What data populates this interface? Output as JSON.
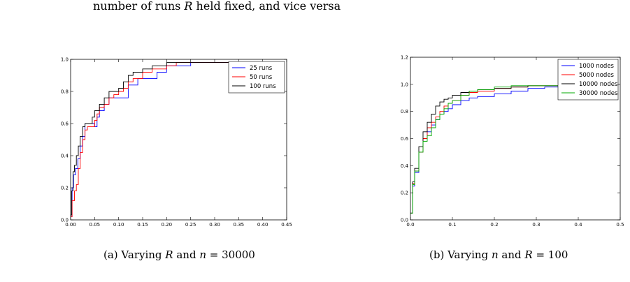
{
  "intro_text": {
    "before": "number of runs ",
    "var": "R",
    "after": " held fixed, and vice versa"
  },
  "captions": [
    {
      "label": "(a) Varying ",
      "v1": "R",
      "mid": " and ",
      "v2": "n",
      "tail": " = 30000"
    },
    {
      "label": "(b) Varying ",
      "v1": "n",
      "mid": " and ",
      "v2": "R",
      "tail": " = 100"
    }
  ],
  "chart_data": [
    {
      "type": "line",
      "step": true,
      "xlim": [
        0.0,
        0.45
      ],
      "ylim": [
        0.0,
        1.0
      ],
      "xticks": [
        "0.00",
        "0.05",
        "0.10",
        "0.15",
        "0.20",
        "0.25",
        "0.30",
        "0.35",
        "0.40",
        "0.45"
      ],
      "yticks": [
        "0.0",
        "0.2",
        "0.4",
        "0.6",
        "0.8",
        "1.0"
      ],
      "legend_position": "top-right",
      "series": [
        {
          "name": "25 runs",
          "color": "#0000ff",
          "x": [
            0.0,
            0.003,
            0.006,
            0.01,
            0.015,
            0.02,
            0.025,
            0.03,
            0.04,
            0.05,
            0.055,
            0.06,
            0.07,
            0.08,
            0.09,
            0.1,
            0.11,
            0.12,
            0.13,
            0.14,
            0.16,
            0.18,
            0.2,
            0.22,
            0.25,
            0.3,
            0.43
          ],
          "y": [
            0.02,
            0.2,
            0.28,
            0.32,
            0.38,
            0.46,
            0.52,
            0.6,
            0.6,
            0.58,
            0.64,
            0.68,
            0.72,
            0.76,
            0.76,
            0.76,
            0.76,
            0.84,
            0.84,
            0.88,
            0.88,
            0.92,
            0.96,
            0.96,
            0.98,
            0.98,
            0.98
          ]
        },
        {
          "name": "50 runs",
          "color": "#ff0000",
          "x": [
            0.0,
            0.003,
            0.008,
            0.012,
            0.016,
            0.02,
            0.025,
            0.03,
            0.035,
            0.04,
            0.05,
            0.055,
            0.06,
            0.07,
            0.08,
            0.09,
            0.1,
            0.11,
            0.12,
            0.13,
            0.15,
            0.17,
            0.2,
            0.22,
            0.25,
            0.3,
            0.43
          ],
          "y": [
            0.02,
            0.12,
            0.18,
            0.22,
            0.32,
            0.42,
            0.5,
            0.56,
            0.58,
            0.58,
            0.62,
            0.66,
            0.7,
            0.72,
            0.76,
            0.78,
            0.8,
            0.82,
            0.86,
            0.88,
            0.92,
            0.94,
            0.96,
            0.98,
            0.98,
            0.98,
            0.98
          ]
        },
        {
          "name": "100 runs",
          "color": "#000000",
          "x": [
            0.0,
            0.002,
            0.005,
            0.008,
            0.012,
            0.016,
            0.02,
            0.025,
            0.03,
            0.04,
            0.045,
            0.05,
            0.06,
            0.07,
            0.08,
            0.09,
            0.1,
            0.11,
            0.12,
            0.13,
            0.15,
            0.17,
            0.2,
            0.22,
            0.25,
            0.3,
            0.43
          ],
          "y": [
            0.03,
            0.18,
            0.3,
            0.34,
            0.4,
            0.46,
            0.52,
            0.58,
            0.6,
            0.6,
            0.64,
            0.68,
            0.72,
            0.76,
            0.8,
            0.8,
            0.82,
            0.86,
            0.9,
            0.92,
            0.94,
            0.96,
            0.98,
            0.98,
            0.98,
            0.98,
            0.98
          ]
        }
      ]
    },
    {
      "type": "line",
      "step": true,
      "xlim": [
        0.0,
        0.5
      ],
      "ylim": [
        0.0,
        1.2
      ],
      "xticks": [
        "0.0",
        "0.1",
        "0.2",
        "0.3",
        "0.4",
        "0.5"
      ],
      "yticks": [
        "0.0",
        "0.2",
        "0.4",
        "0.6",
        "0.8",
        "1.0",
        "1.2"
      ],
      "legend_position": "top-right",
      "series": [
        {
          "name": "1000 nodes",
          "color": "#0000ff",
          "x": [
            0.0,
            0.005,
            0.01,
            0.02,
            0.03,
            0.04,
            0.05,
            0.06,
            0.07,
            0.08,
            0.09,
            0.1,
            0.12,
            0.14,
            0.16,
            0.2,
            0.24,
            0.28,
            0.32,
            0.36
          ],
          "y": [
            0.05,
            0.25,
            0.35,
            0.5,
            0.6,
            0.65,
            0.7,
            0.74,
            0.78,
            0.8,
            0.82,
            0.85,
            0.88,
            0.9,
            0.91,
            0.93,
            0.95,
            0.97,
            0.98,
            0.98
          ]
        },
        {
          "name": "5000 nodes",
          "color": "#ff0000",
          "x": [
            0.0,
            0.005,
            0.01,
            0.02,
            0.03,
            0.04,
            0.05,
            0.06,
            0.07,
            0.08,
            0.09,
            0.1,
            0.12,
            0.14,
            0.16,
            0.2,
            0.24,
            0.28,
            0.32,
            0.36
          ],
          "y": [
            0.05,
            0.27,
            0.36,
            0.5,
            0.6,
            0.68,
            0.72,
            0.76,
            0.8,
            0.84,
            0.86,
            0.88,
            0.92,
            0.94,
            0.95,
            0.97,
            0.98,
            0.99,
            0.99,
            0.99
          ]
        },
        {
          "name": "10000 nodes",
          "color": "#000000",
          "x": [
            0.0,
            0.005,
            0.01,
            0.02,
            0.03,
            0.04,
            0.05,
            0.06,
            0.07,
            0.08,
            0.09,
            0.1,
            0.12,
            0.14,
            0.16,
            0.2,
            0.24,
            0.28,
            0.32,
            0.36
          ],
          "y": [
            0.05,
            0.28,
            0.38,
            0.54,
            0.65,
            0.72,
            0.78,
            0.84,
            0.87,
            0.89,
            0.9,
            0.92,
            0.94,
            0.95,
            0.96,
            0.97,
            0.98,
            0.99,
            0.99,
            0.99
          ]
        },
        {
          "name": "30000 nodes",
          "color": "#00aa00",
          "x": [
            0.0,
            0.005,
            0.01,
            0.02,
            0.03,
            0.04,
            0.05,
            0.06,
            0.07,
            0.08,
            0.09,
            0.1,
            0.12,
            0.14,
            0.16,
            0.2,
            0.24,
            0.28,
            0.32,
            0.36
          ],
          "y": [
            0.05,
            0.26,
            0.36,
            0.5,
            0.58,
            0.62,
            0.68,
            0.74,
            0.78,
            0.82,
            0.86,
            0.88,
            0.92,
            0.95,
            0.96,
            0.98,
            0.99,
            0.99,
            0.99,
            0.99
          ]
        }
      ]
    }
  ]
}
